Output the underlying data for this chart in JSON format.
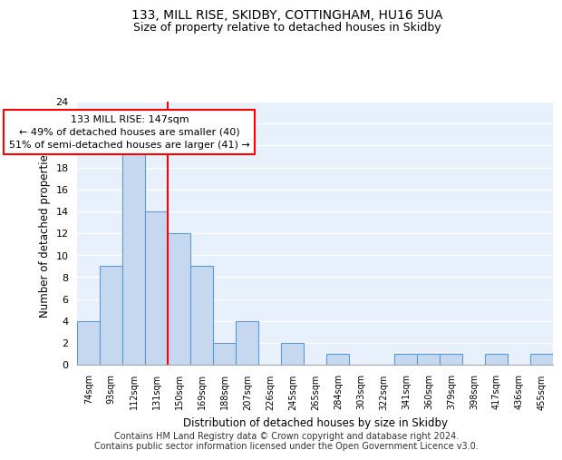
{
  "title": "133, MILL RISE, SKIDBY, COTTINGHAM, HU16 5UA",
  "subtitle": "Size of property relative to detached houses in Skidby",
  "xlabel": "Distribution of detached houses by size in Skidby",
  "ylabel": "Number of detached properties",
  "categories": [
    "74sqm",
    "93sqm",
    "112sqm",
    "131sqm",
    "150sqm",
    "169sqm",
    "188sqm",
    "207sqm",
    "226sqm",
    "245sqm",
    "265sqm",
    "284sqm",
    "303sqm",
    "322sqm",
    "341sqm",
    "360sqm",
    "379sqm",
    "398sqm",
    "417sqm",
    "436sqm",
    "455sqm"
  ],
  "values": [
    4,
    9,
    20,
    14,
    12,
    9,
    2,
    4,
    0,
    2,
    0,
    1,
    0,
    0,
    1,
    1,
    1,
    0,
    1,
    0,
    1
  ],
  "bar_color": "#c5d8f0",
  "bar_edge_color": "#5b9bd5",
  "red_line_index": 3.5,
  "annotation_text": "133 MILL RISE: 147sqm\n← 49% of detached houses are smaller (40)\n51% of semi-detached houses are larger (41) →",
  "annotation_box_color": "white",
  "annotation_box_edge_color": "red",
  "red_line_color": "red",
  "ylim": [
    0,
    24
  ],
  "yticks": [
    0,
    2,
    4,
    6,
    8,
    10,
    12,
    14,
    16,
    18,
    20,
    22,
    24
  ],
  "footer_text": "Contains HM Land Registry data © Crown copyright and database right 2024.\nContains public sector information licensed under the Open Government Licence v3.0.",
  "background_color": "#e8f0fb",
  "title_fontsize": 10,
  "subtitle_fontsize": 9,
  "footer_fontsize": 7,
  "annotation_fontsize": 8
}
